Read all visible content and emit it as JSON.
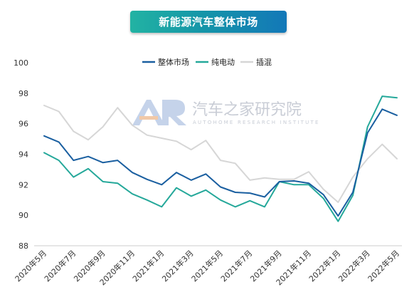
{
  "title": "新能源汽车整体市场",
  "watermark": {
    "logo_text": "AR",
    "name_cn": "汽车之家研究院",
    "name_en": "AUTOHOME RESEARCH INSTITUTE"
  },
  "chart_data": {
    "type": "line",
    "title": "新能源汽车整体市场",
    "xlabel": "",
    "ylabel": "",
    "ylim": [
      88,
      100
    ],
    "yticks": [
      88,
      90,
      92,
      94,
      96,
      98,
      100
    ],
    "grid": false,
    "legend_position": "top-center",
    "x": [
      "2020年5月",
      "2020年6月",
      "2020年7月",
      "2020年8月",
      "2020年9月",
      "2020年10月",
      "2020年11月",
      "2020年12月",
      "2021年1月",
      "2021年2月",
      "2021年3月",
      "2021年4月",
      "2021年5月",
      "2021年6月",
      "2021年7月",
      "2021年8月",
      "2021年9月",
      "2021年10月",
      "2021年11月",
      "2021年12月",
      "2022年1月",
      "2022年2月",
      "2022年3月",
      "2022年4月",
      "2022年5月"
    ],
    "xtick_labels": [
      "2020年5月",
      "2020年7月",
      "2020年9月",
      "2020年11月",
      "2021年1月",
      "2021年3月",
      "2021年5月",
      "2021年7月",
      "2021年9月",
      "2021年11月",
      "2022年1月",
      "2022年3月",
      "2022年5月"
    ],
    "series": [
      {
        "name": "整体市场",
        "color": "#1a5fa0",
        "values": [
          95.2,
          94.8,
          93.6,
          93.85,
          93.45,
          93.6,
          92.8,
          92.35,
          92.0,
          92.8,
          92.3,
          92.7,
          91.85,
          91.5,
          91.45,
          91.2,
          92.2,
          92.25,
          92.1,
          91.35,
          89.95,
          91.5,
          95.4,
          96.95,
          96.55
        ]
      },
      {
        "name": "纯电动",
        "color": "#25a89a",
        "values": [
          94.1,
          93.6,
          92.5,
          93.05,
          92.2,
          92.1,
          91.4,
          91.0,
          90.55,
          91.8,
          91.25,
          91.65,
          91.0,
          90.55,
          90.95,
          90.55,
          92.2,
          92.0,
          92.0,
          91.1,
          89.6,
          91.3,
          95.8,
          97.8,
          97.7
        ]
      },
      {
        "name": "插混",
        "color": "#d6d6d6",
        "values": [
          97.2,
          96.8,
          95.5,
          94.95,
          95.8,
          97.05,
          95.9,
          95.25,
          95.05,
          94.85,
          94.3,
          94.9,
          93.6,
          93.4,
          92.3,
          92.45,
          92.35,
          92.35,
          92.85,
          91.7,
          90.85,
          92.5,
          93.7,
          94.65,
          93.7
        ]
      }
    ]
  }
}
